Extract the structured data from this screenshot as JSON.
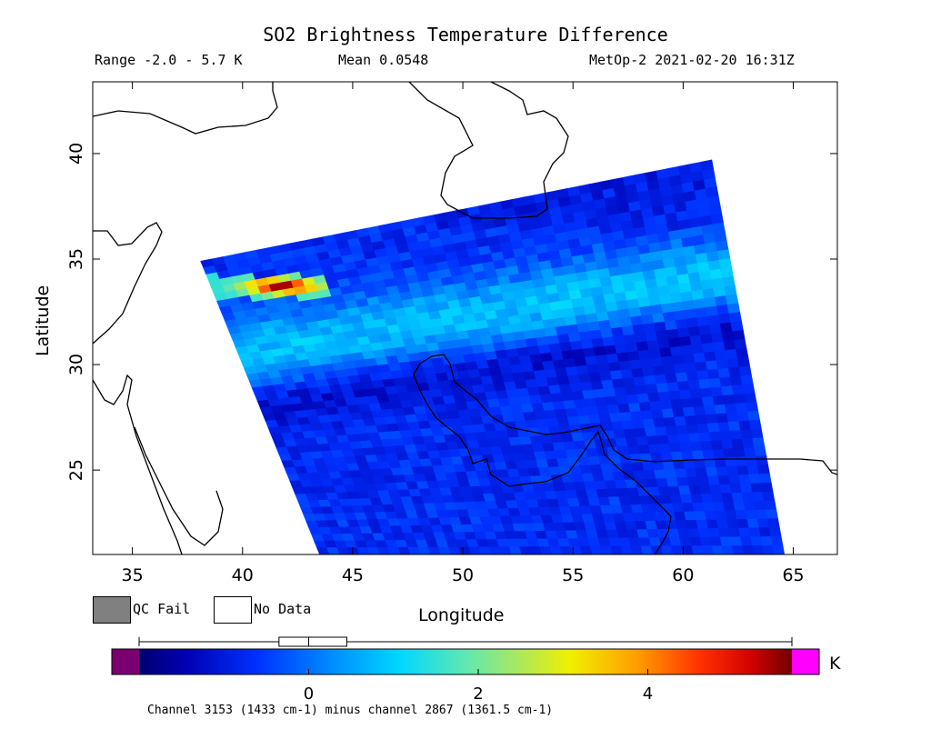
{
  "header": {
    "title": "SO2 Brightness Temperature Difference",
    "range": "Range -2.0 - 5.7 K",
    "mean": "Mean 0.0548",
    "satellite_time": "MetOp-2 2021-02-20 16:31Z"
  },
  "legend": {
    "qc_fail": "QC Fail",
    "no_data": "No Data"
  },
  "colorbar": {
    "unit": "K",
    "note": "Channel 3153 (1433 cm-1) minus channel 2867 (1361.5 cm-1)",
    "ticks": [
      {
        "value": 0,
        "label": "0"
      },
      {
        "value": 2,
        "label": "2"
      },
      {
        "value": 4,
        "label": "4"
      }
    ],
    "min": -2.0,
    "max": 5.7,
    "underflow_color": "#7a0070",
    "overflow_color": "#ff00ff",
    "boxplot": {
      "min": -2.0,
      "q1": -0.35,
      "median": 0.0,
      "q3": 0.45,
      "max": 5.7
    }
  },
  "chart_data": {
    "type": "heatmap",
    "title": "SO2 Brightness Temperature Difference",
    "xlabel": "Longitude",
    "ylabel": "Latitude",
    "xlim": [
      33.2,
      67
    ],
    "ylim": [
      21,
      43.4
    ],
    "xticks": [
      35,
      40,
      45,
      50,
      55,
      60,
      65
    ],
    "yticks": [
      25,
      30,
      35,
      40
    ],
    "grid": false,
    "value_unit": "K",
    "swath_corners": {
      "top_left": [
        38.1,
        34.9
      ],
      "top_right": [
        61.3,
        39.7
      ],
      "bottom_right": [
        64.6,
        21
      ],
      "bottom_left": [
        43.5,
        21
      ]
    },
    "features": [
      {
        "name": "SO2 hotspot",
        "lon": 41.8,
        "lat": 33.7,
        "value": 5.5
      },
      {
        "name": "SO2 plume",
        "lon_range": [
          39.3,
          43.5
        ],
        "lat_range": [
          33.2,
          34.1
        ],
        "value_range": [
          1.5,
          5.5
        ]
      }
    ],
    "background_value_range": [
      -1.5,
      1.2
    ]
  }
}
